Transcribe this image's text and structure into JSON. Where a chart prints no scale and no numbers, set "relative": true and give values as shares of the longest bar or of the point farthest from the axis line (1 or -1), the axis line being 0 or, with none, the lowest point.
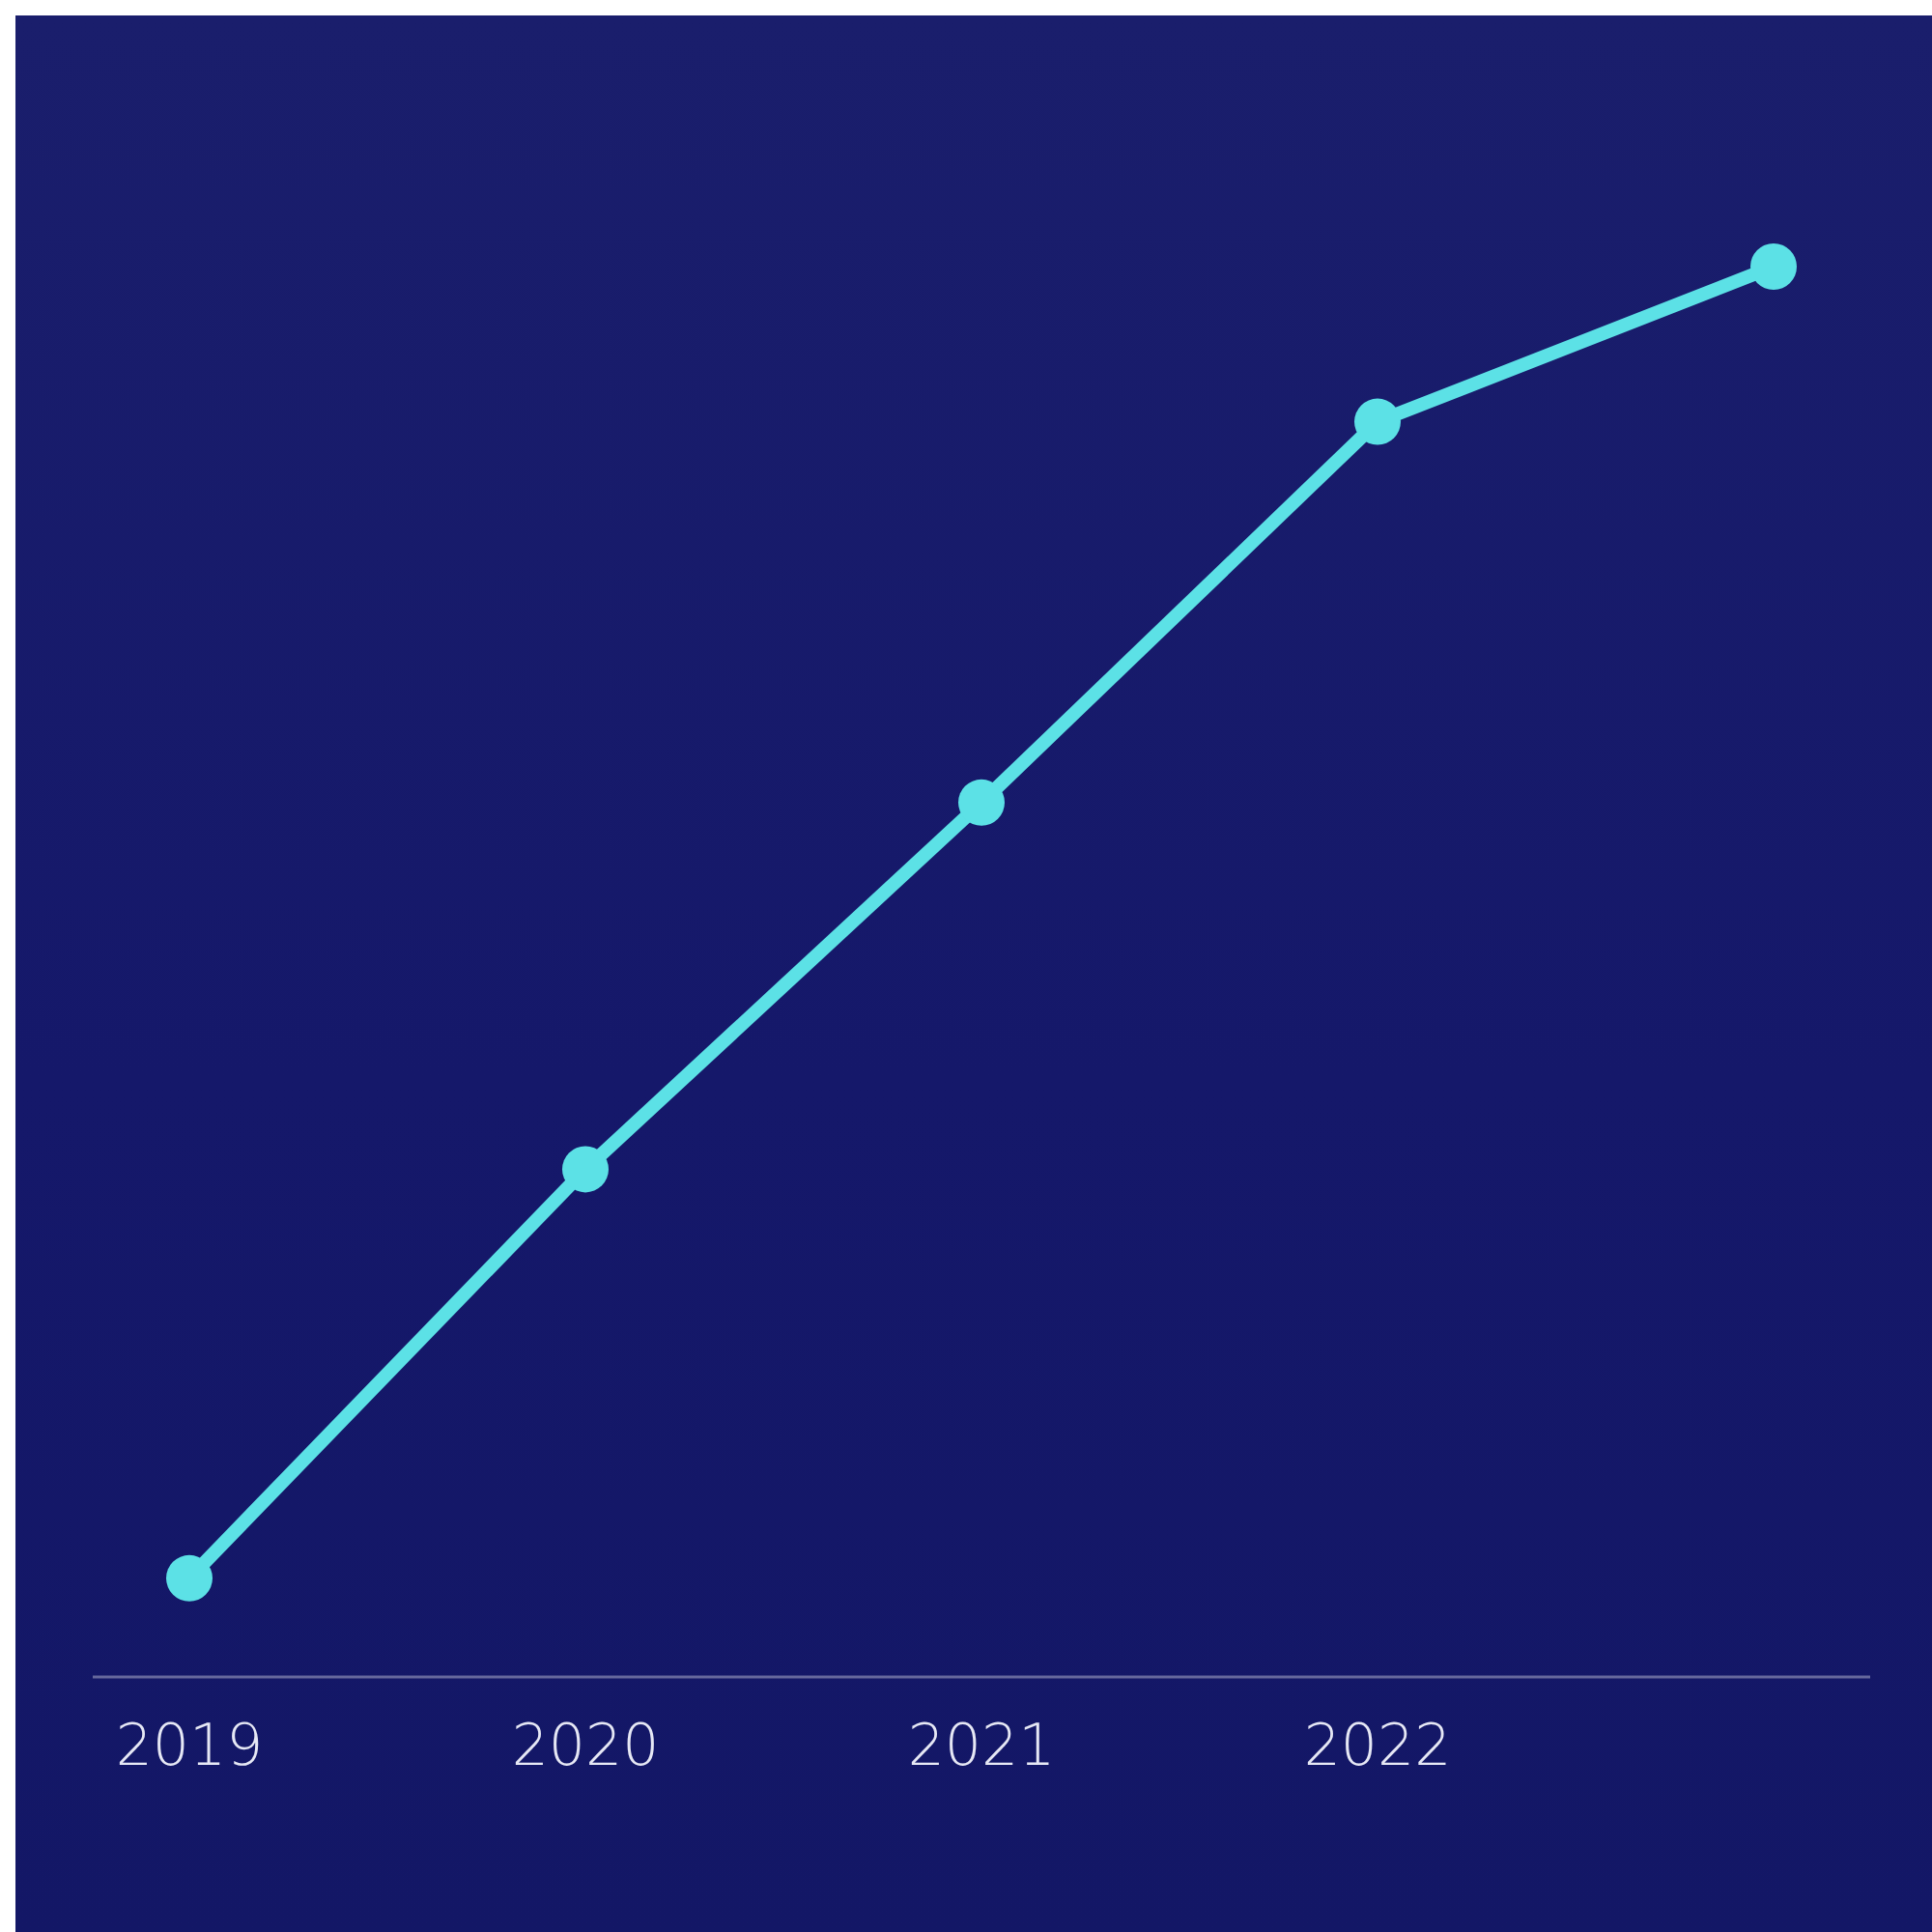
{
  "chart_data": {
    "type": "line",
    "categories": [
      "2019",
      "2020",
      "2021",
      "2022",
      null
    ],
    "series": [
      {
        "color": "#5ce1e6",
        "values": [
          0.07,
          0.36,
          0.62,
          0.89,
          1
        ]
      }
    ],
    "relative": true,
    "marker": "circle",
    "line_style": "solid"
  }
}
